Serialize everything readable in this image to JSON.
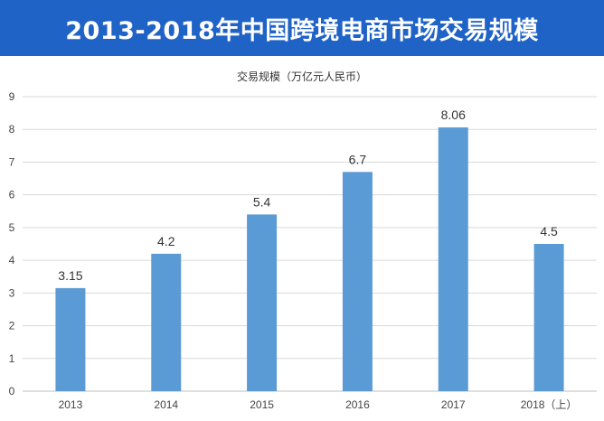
{
  "banner": {
    "title": "2013-2018年中国跨境电商市场交易规模"
  },
  "chart_data": {
    "type": "bar",
    "title": "交易规模（万亿元人民币）",
    "categories": [
      "2013",
      "2014",
      "2015",
      "2016",
      "2017",
      "2018（上）"
    ],
    "values": [
      3.15,
      4.2,
      5.4,
      6.7,
      8.06,
      4.5
    ],
    "data_labels": [
      "3.15",
      "4.2",
      "5.4",
      "6.7",
      "8.06",
      "4.5"
    ],
    "ylim": [
      0,
      9
    ],
    "yticks": [
      "0",
      "1",
      "2",
      "3",
      "4",
      "5",
      "6",
      "7",
      "8",
      "9"
    ],
    "grid": true,
    "bar_color": "#5b9bd5"
  }
}
